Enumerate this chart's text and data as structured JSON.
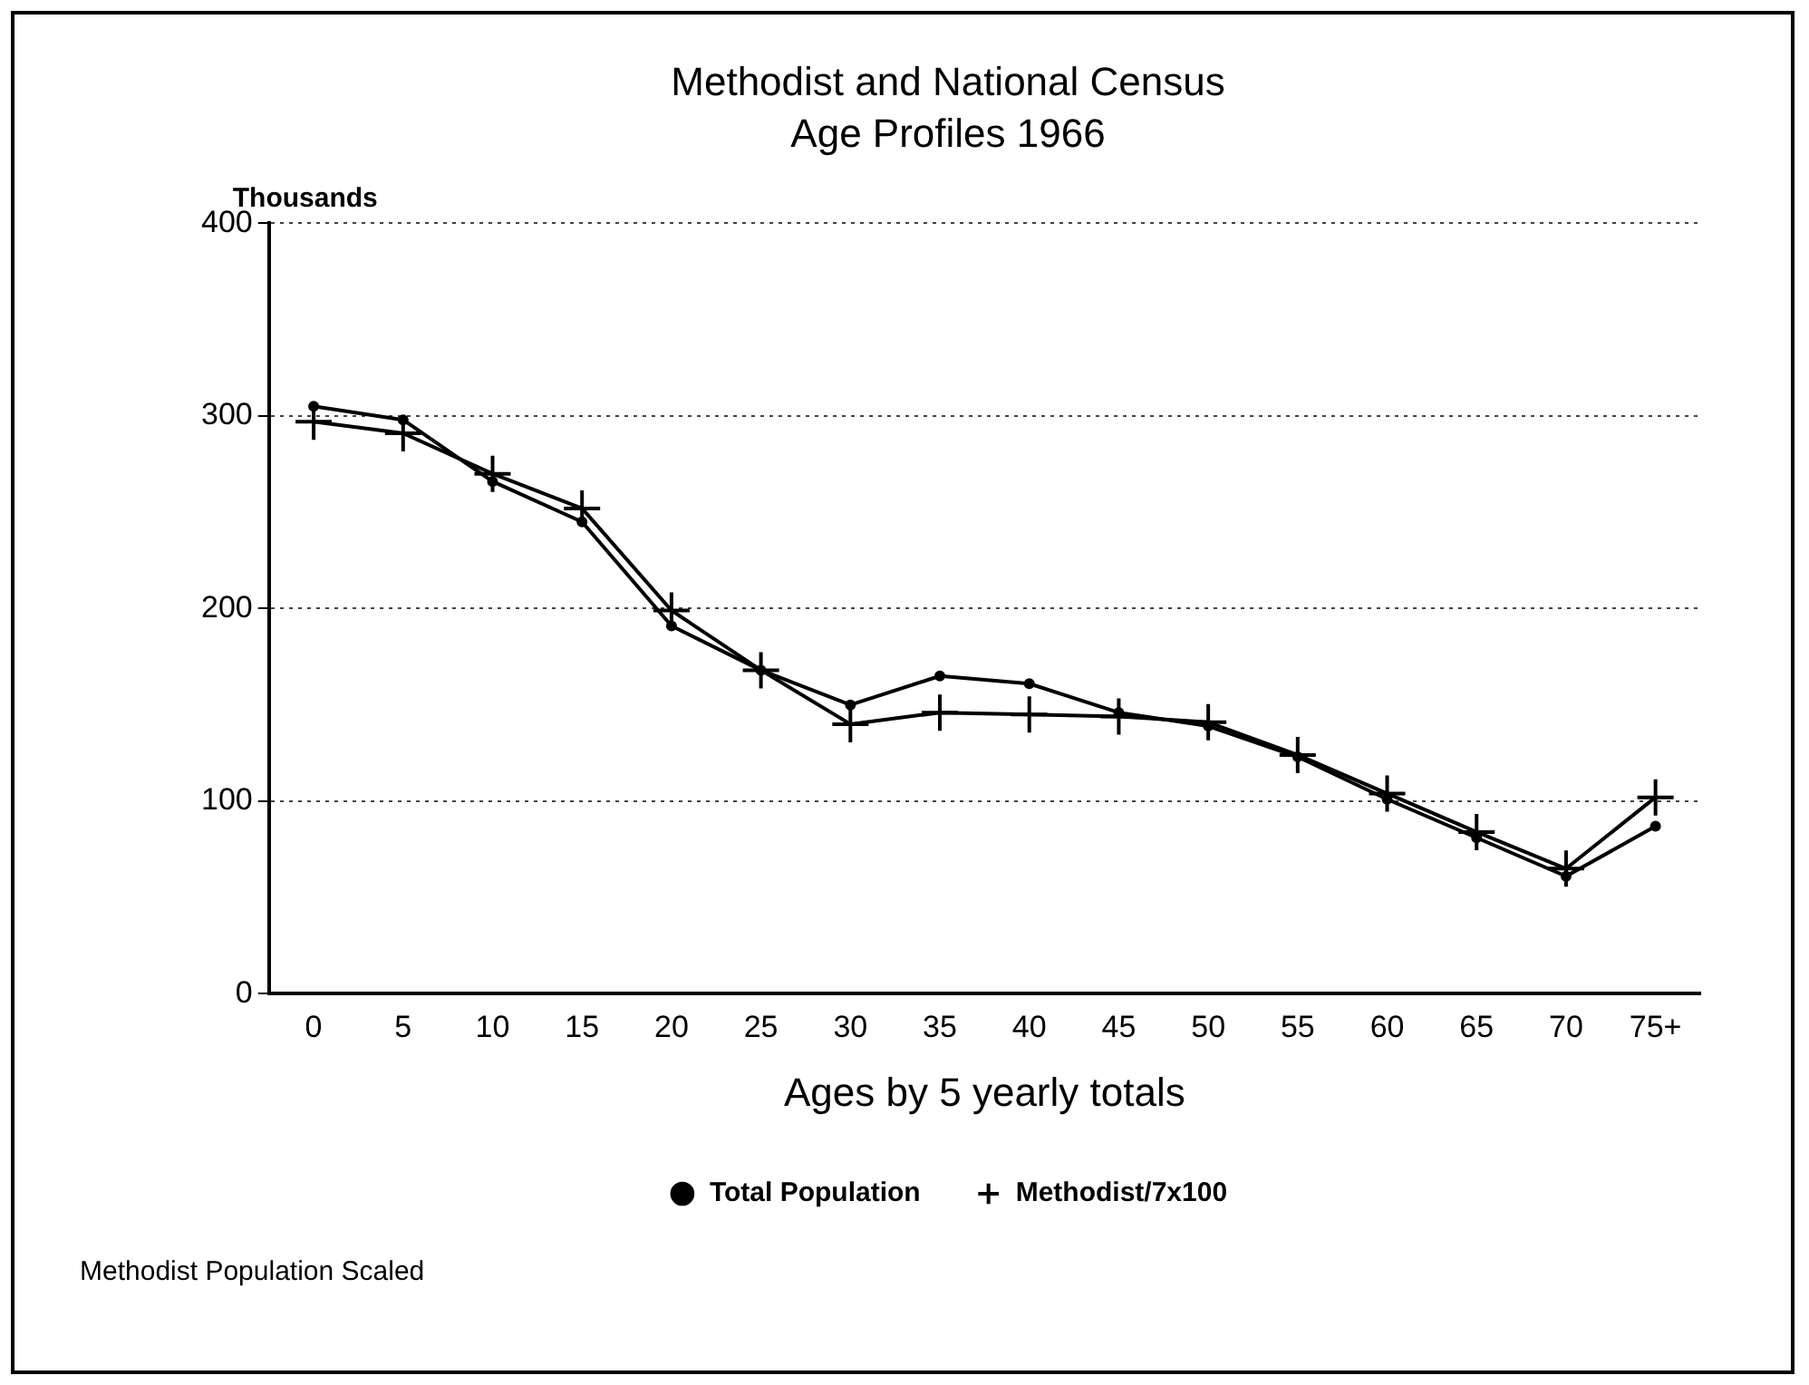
{
  "chart_data": {
    "type": "line",
    "title": "Methodist and National Census\nAge Profiles 1966",
    "xlabel": "Ages by 5 yearly totals",
    "ylabel": "Thousands",
    "categories": [
      "0",
      "5",
      "10",
      "15",
      "20",
      "25",
      "30",
      "35",
      "40",
      "45",
      "50",
      "55",
      "60",
      "65",
      "70",
      "75+"
    ],
    "series": [
      {
        "name": "Total Population",
        "color": "#000000",
        "marker": "circle",
        "values": [
          305,
          298,
          266,
          245,
          191,
          168,
          150,
          165,
          161,
          146,
          139,
          123,
          101,
          81,
          61,
          87
        ]
      },
      {
        "name": "Methodist/7x100",
        "color": "#000000",
        "marker": "cross",
        "values": [
          297,
          291,
          270,
          252,
          199,
          168,
          140,
          146,
          145,
          144,
          141,
          124,
          104,
          84,
          65,
          102
        ]
      }
    ],
    "ylim": [
      0,
      400
    ],
    "yticks": [
      0,
      100,
      200,
      300,
      400
    ],
    "grid": "y",
    "legend": "bottom",
    "line_style": "solid",
    "annotations": [
      "Methodist Population Scaled"
    ]
  }
}
